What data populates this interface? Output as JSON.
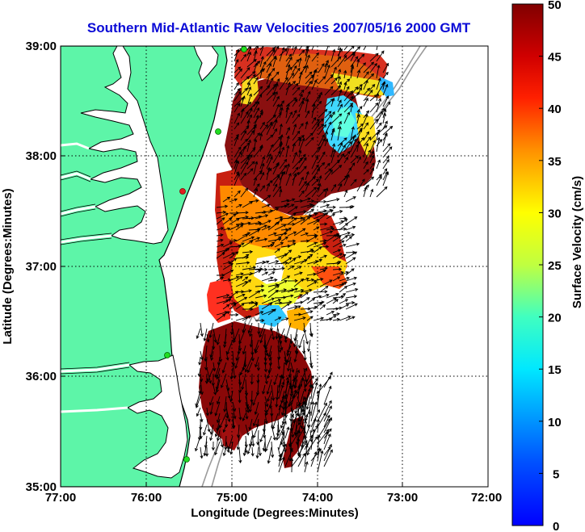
{
  "title": "Southern Mid-Atlantic Raw Velocities 2007/05/16 2000 GMT",
  "x_axis": {
    "label": "Longitude (Degrees:Minutes)",
    "ticks": [
      "77:00",
      "76:00",
      "75:00",
      "74:00",
      "73:00",
      "72:00"
    ]
  },
  "y_axis": {
    "label": "Latitude (Degrees:Minutes)",
    "ticks": [
      "39:00",
      "38:00",
      "37:00",
      "36:00",
      "35:00"
    ]
  },
  "colorbar": {
    "label": "Surface Velocity (cm/s)",
    "ticks": [
      "50",
      "45",
      "40",
      "35",
      "30",
      "25",
      "20",
      "15",
      "10",
      "5",
      "0"
    ],
    "range": [
      0,
      50
    ],
    "colormap": "jet"
  },
  "map": {
    "lon_range": [
      -77,
      -72
    ],
    "lat_range": [
      35,
      39
    ],
    "grid": "dotted",
    "land_color": "#5df5a8",
    "water_color": "#ffffff",
    "coastline_color": "#000000",
    "bathymetry_color": "#9a9a9a",
    "site_marker_color": "#22dd22",
    "site_marker_alt_color": "#e02020"
  }
}
